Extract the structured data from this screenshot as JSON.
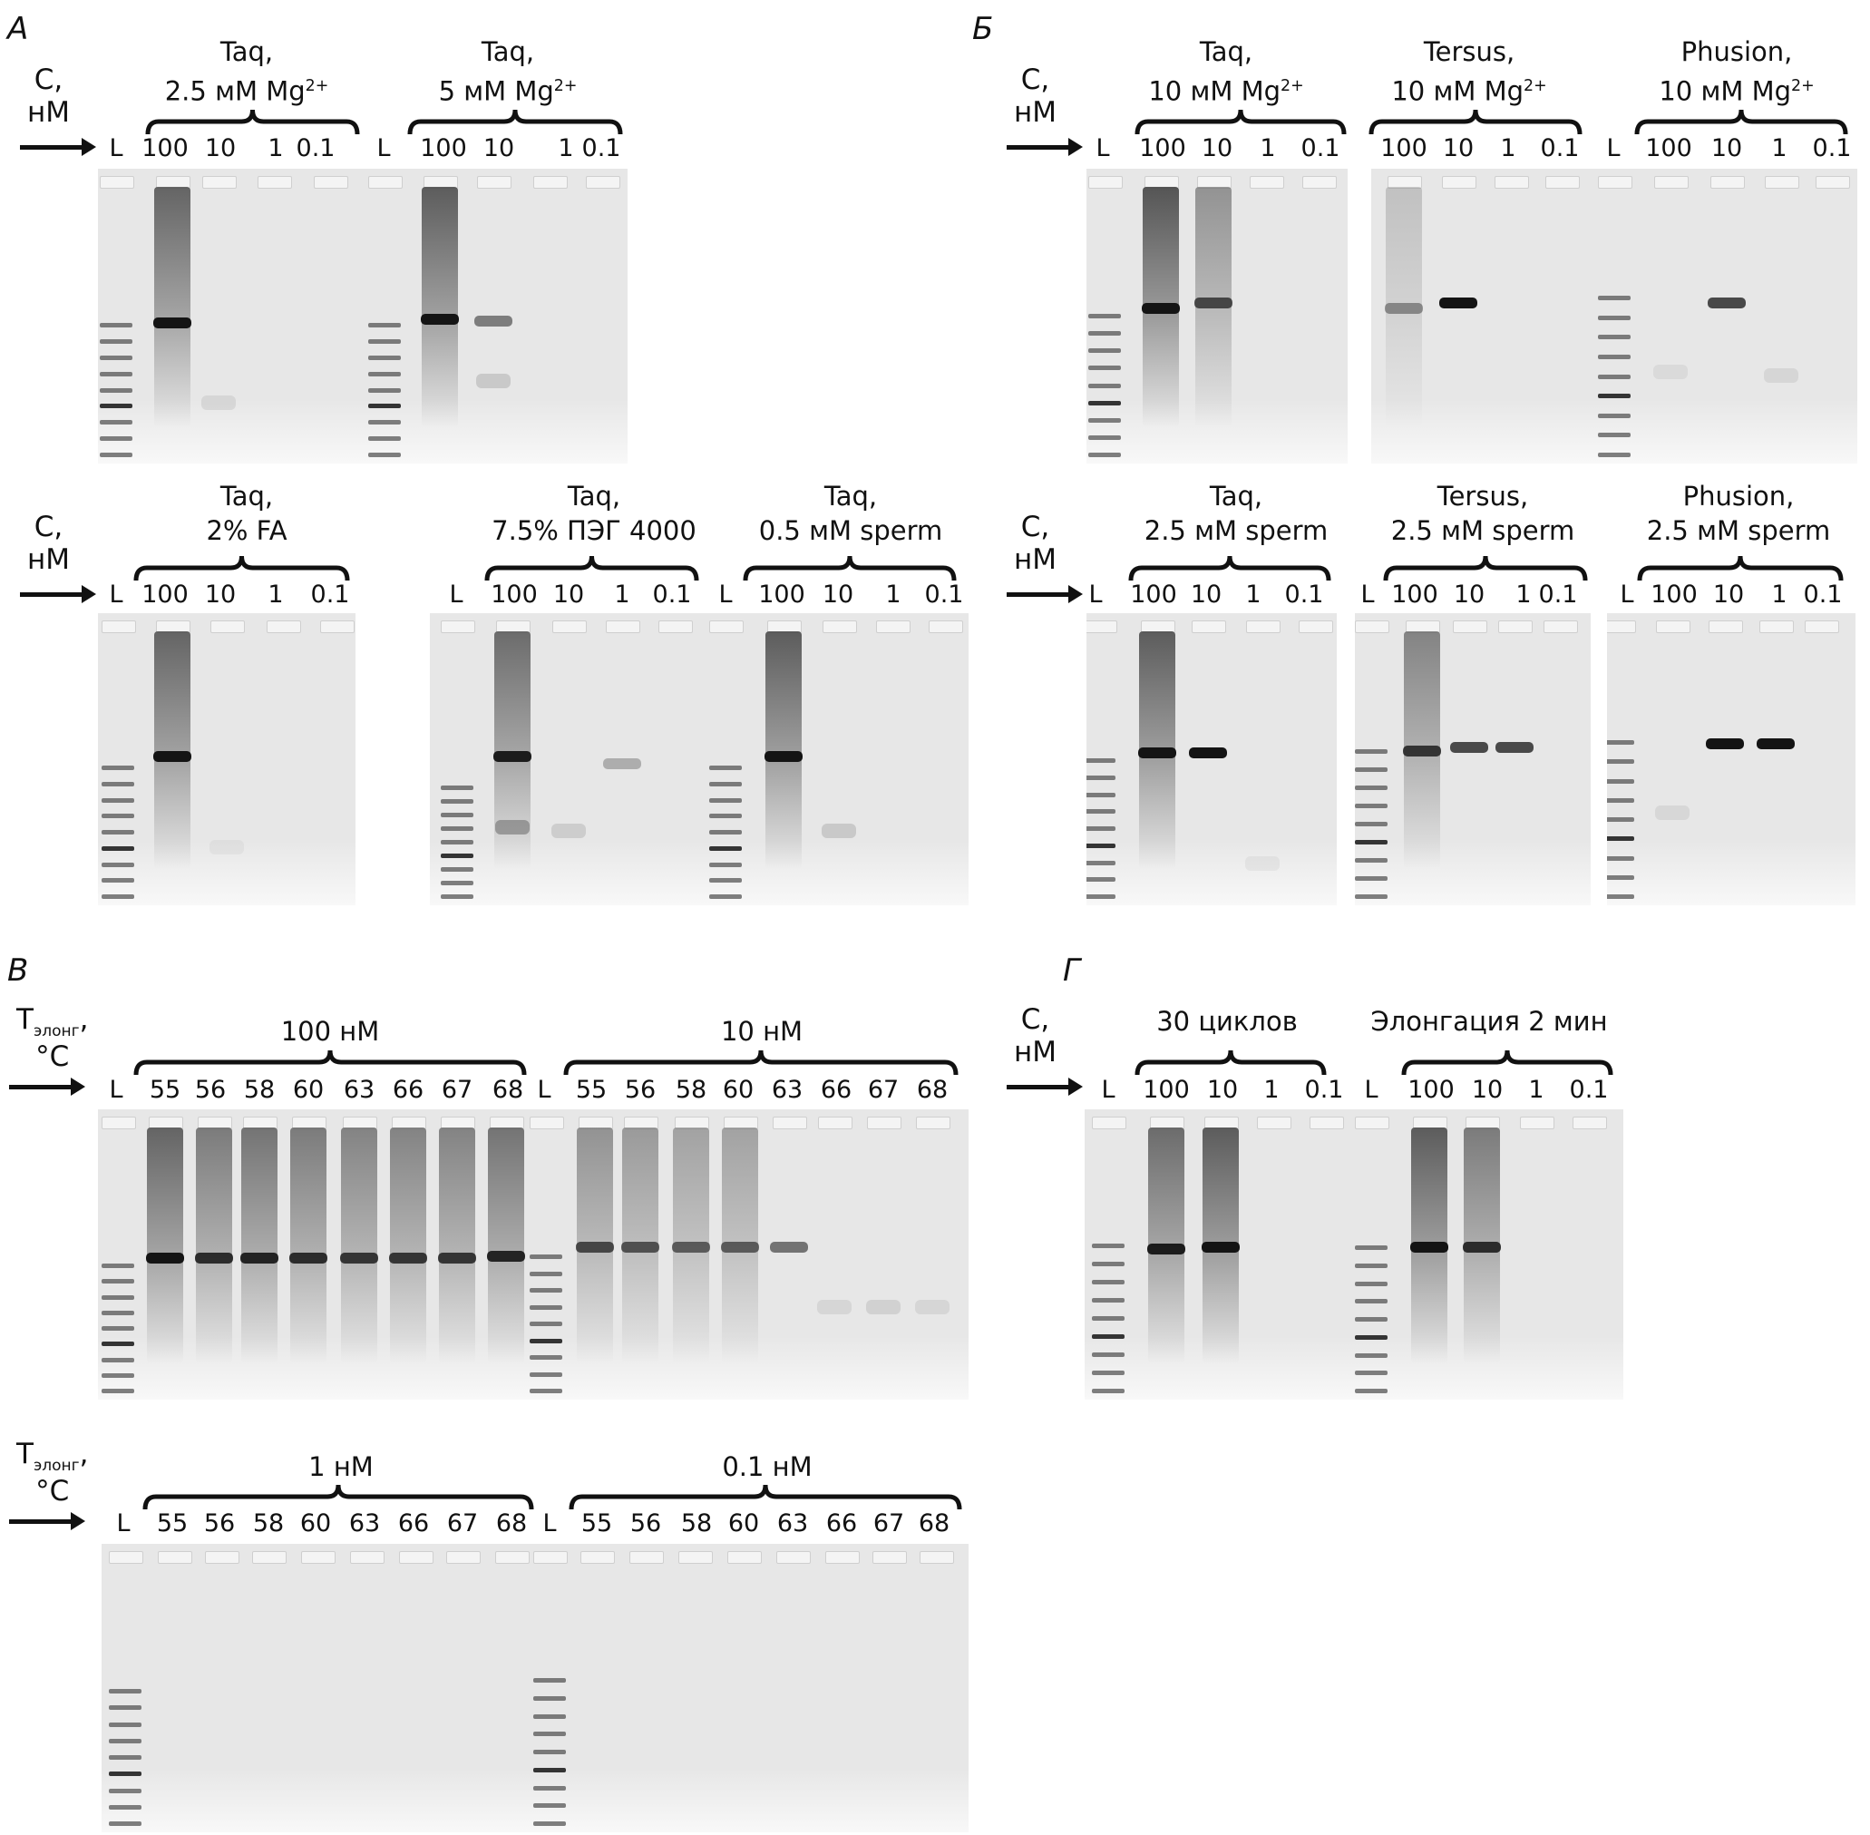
{
  "panels": {
    "A": "А",
    "B": "Б",
    "V": "В",
    "G": "Г"
  },
  "conc_label_top": "C,",
  "conc_label_bottom": "нМ",
  "temp_label_top": "T",
  "temp_label_sub": "элонг",
  "temp_label_bottom": "°C",
  "ladder": "L",
  "conc_lanes": [
    "100",
    "10",
    "1",
    "0.1"
  ],
  "temp_lanes": [
    "55",
    "56",
    "58",
    "60",
    "63",
    "66",
    "67",
    "68"
  ],
  "groups": {
    "a1": {
      "line1": "Taq,",
      "line2": "2.5 мМ Mg",
      "sup": "2+"
    },
    "a2": {
      "line1": "Taq,",
      "line2": "5 мМ Mg",
      "sup": "2+"
    },
    "a3": {
      "line1": "Taq,",
      "line2": "2% FA"
    },
    "a4": {
      "line1": "Taq,",
      "line2": "7.5% ПЭГ 4000"
    },
    "a5": {
      "line1": "Taq,",
      "line2": "0.5 мМ sperm"
    },
    "b1": {
      "line1": "Taq,",
      "line2": "10 мМ Mg",
      "sup": "2+"
    },
    "b2": {
      "line1": "Tersus,",
      "line2": "10 мМ Mg",
      "sup": "2+"
    },
    "b3": {
      "line1": "Phusion,",
      "line2": "10 мМ Mg",
      "sup": "2+"
    },
    "b4": {
      "line1": "Taq,",
      "line2": "2.5 мМ sperm"
    },
    "b5": {
      "line1": "Tersus,",
      "line2": "2.5 мМ sperm"
    },
    "b6": {
      "line1": "Phusion,",
      "line2": "2.5 мМ sperm"
    },
    "v1": {
      "line1": "100 нМ"
    },
    "v2": {
      "line1": "10 нМ"
    },
    "v3": {
      "line1": "1 нМ"
    },
    "v4": {
      "line1": "0.1 нМ"
    },
    "g1": {
      "line1": "30 циклов"
    },
    "g2": {
      "line1": "Элонгация 2 мин"
    }
  }
}
